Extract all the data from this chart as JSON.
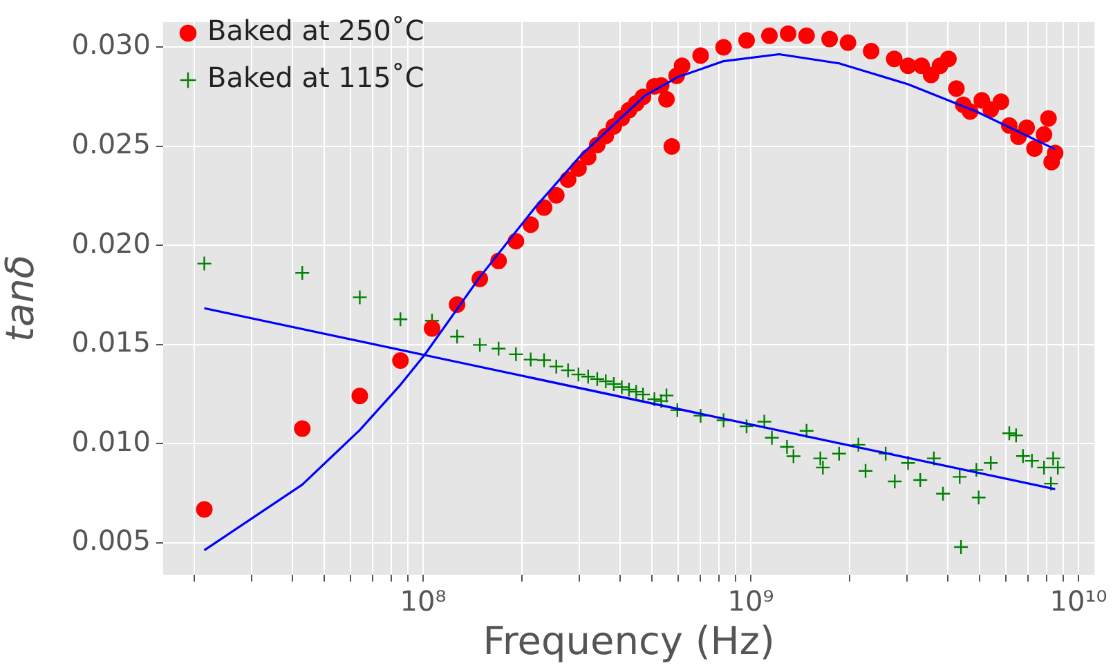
{
  "chart_data": {
    "type": "scatter",
    "xlabel": "Frequency (Hz)",
    "ylabel": "tanδ",
    "log": "x",
    "grid": true,
    "legend": "top left",
    "xlim": [
      16100000,
      11200000000
    ],
    "ylim": [
      0.0034,
      0.03125
    ],
    "xticks": [
      {
        "value": 20000000,
        "label": null
      },
      {
        "value": 30000000,
        "label": null
      },
      {
        "value": 40000000,
        "label": null
      },
      {
        "value": 50000000,
        "label": null
      },
      {
        "value": 60000000,
        "label": null
      },
      {
        "value": 70000000,
        "label": null
      },
      {
        "value": 80000000,
        "label": null
      },
      {
        "value": 90000000,
        "label": null
      },
      {
        "value": 100000000,
        "label": "10⁸"
      },
      {
        "value": 200000000,
        "label": null
      },
      {
        "value": 300000000,
        "label": null
      },
      {
        "value": 400000000,
        "label": null
      },
      {
        "value": 500000000,
        "label": null
      },
      {
        "value": 600000000,
        "label": null
      },
      {
        "value": 700000000,
        "label": null
      },
      {
        "value": 800000000,
        "label": null
      },
      {
        "value": 900000000,
        "label": null
      },
      {
        "value": 1000000000,
        "label": "10⁹"
      },
      {
        "value": 2000000000,
        "label": null
      },
      {
        "value": 3000000000,
        "label": null
      },
      {
        "value": 4000000000,
        "label": null
      },
      {
        "value": 5000000000,
        "label": null
      },
      {
        "value": 6000000000,
        "label": null
      },
      {
        "value": 7000000000,
        "label": null
      },
      {
        "value": 8000000000,
        "label": null
      },
      {
        "value": 9000000000,
        "label": null
      },
      {
        "value": 10000000000,
        "label": "10¹⁰"
      }
    ],
    "yticks": [
      {
        "value": 0.005,
        "label": "0.005"
      },
      {
        "value": 0.01,
        "label": "0.010"
      },
      {
        "value": 0.015,
        "label": "0.015"
      },
      {
        "value": 0.02,
        "label": "0.020"
      },
      {
        "value": 0.025,
        "label": "0.025"
      },
      {
        "value": 0.03,
        "label": "0.030"
      }
    ],
    "series": [
      {
        "name": "Baked at 250˚C",
        "marker": "circle",
        "color": "#ff0000",
        "x": [
          21500000,
          42800000,
          64100000,
          85300000,
          106500000,
          127000000,
          149000000,
          170000000,
          192000000,
          213000000,
          234000000,
          255000000,
          277000000,
          298000000,
          319000000,
          340000000,
          361000000,
          382000000,
          404000000,
          425000000,
          447000000,
          469000000,
          508000000,
          533000000,
          553000000,
          574000000,
          594000000,
          617000000,
          703000000,
          826000000,
          971000000,
          1140000000,
          1300000000,
          1480000000,
          1740000000,
          1980000000,
          2330000000,
          2740000000,
          3020000000,
          3320000000,
          3550000000,
          3780000000,
          4010000000,
          4240000000,
          4450000000,
          4670000000,
          5070000000,
          5400000000,
          5800000000,
          6150000000,
          6560000000,
          6950000000,
          7340000000,
          7850000000,
          8100000000,
          8280000000,
          8490000000
        ],
        "values": [
          0.00669,
          0.01076,
          0.01241,
          0.01419,
          0.01581,
          0.01701,
          0.01831,
          0.01921,
          0.02021,
          0.02104,
          0.0219,
          0.02252,
          0.02331,
          0.02387,
          0.02444,
          0.02505,
          0.02551,
          0.02599,
          0.02641,
          0.02681,
          0.02715,
          0.02748,
          0.02801,
          0.02806,
          0.02736,
          0.02498,
          0.02854,
          0.02905,
          0.02956,
          0.02998,
          0.03033,
          0.03056,
          0.03067,
          0.03056,
          0.0304,
          0.03021,
          0.02979,
          0.0294,
          0.02905,
          0.02905,
          0.02859,
          0.02905,
          0.0294,
          0.0279,
          0.02708,
          0.02674,
          0.02731,
          0.02685,
          0.02724,
          0.02604,
          0.02547,
          0.02592,
          0.02488,
          0.02558,
          0.02639,
          0.02419,
          0.02465
        ]
      },
      {
        "name": "Baked at 115˚C",
        "marker": "cross",
        "color": "#008000",
        "x": [
          21500000,
          42800000,
          64100000,
          85300000,
          106500000,
          127000000,
          149000000,
          170000000,
          192000000,
          213000000,
          234000000,
          255000000,
          277000000,
          298000000,
          319000000,
          340000000,
          361000000,
          382000000,
          404000000,
          425000000,
          447000000,
          469000000,
          508000000,
          533000000,
          553000000,
          597000000,
          703000000,
          826000000,
          971000000,
          1100000000,
          1160000000,
          1290000000,
          1350000000,
          1480000000,
          1630000000,
          1660000000,
          1860000000,
          2130000000,
          2240000000,
          2580000000,
          2750000000,
          3020000000,
          3290000000,
          3620000000,
          3860000000,
          4340000000,
          4380000000,
          4880000000,
          4960000000,
          5400000000,
          6150000000,
          6450000000,
          6770000000,
          7210000000,
          7850000000,
          8240000000,
          8370000000,
          8650000000
        ],
        "values": [
          0.01908,
          0.01861,
          0.01738,
          0.01627,
          0.0162,
          0.0154,
          0.01498,
          0.01479,
          0.01451,
          0.01424,
          0.01421,
          0.01389,
          0.0137,
          0.01349,
          0.01338,
          0.01326,
          0.01315,
          0.01301,
          0.01285,
          0.01273,
          0.01262,
          0.01248,
          0.01224,
          0.01215,
          0.01243,
          0.01169,
          0.01141,
          0.01118,
          0.01088,
          0.01111,
          0.0103,
          0.00984,
          0.00937,
          0.01065,
          0.00926,
          0.0088,
          0.0095,
          0.00995,
          0.00863,
          0.0095,
          0.0081,
          0.00903,
          0.00817,
          0.00926,
          0.00748,
          0.00833,
          0.00479,
          0.00868,
          0.00729,
          0.00903,
          0.01053,
          0.01042,
          0.00938,
          0.00914,
          0.0088,
          0.00799,
          0.00926,
          0.0088
        ]
      },
      {
        "type": "line",
        "marker": "none",
        "color": "#0000ff",
        "x": [
          21500000,
          42800000,
          64100000,
          85300000,
          101000000,
          149000000,
          219000000,
          303000000,
          476000000,
          597000000,
          826000000,
          1220000000,
          1860000000,
          3020000000,
          4880000000,
          8490000000
        ],
        "values": [
          0.00463,
          0.00794,
          0.01069,
          0.01297,
          0.01447,
          0.0184,
          0.02188,
          0.02453,
          0.02755,
          0.02847,
          0.02928,
          0.02963,
          0.02917,
          0.02812,
          0.02674,
          0.02484
        ]
      },
      {
        "type": "line",
        "marker": "none",
        "color": "#0000ff",
        "x": [
          21500000,
          101000000,
          8490000000
        ],
        "values": [
          0.01683,
          0.01447,
          0.00771
        ]
      }
    ]
  }
}
